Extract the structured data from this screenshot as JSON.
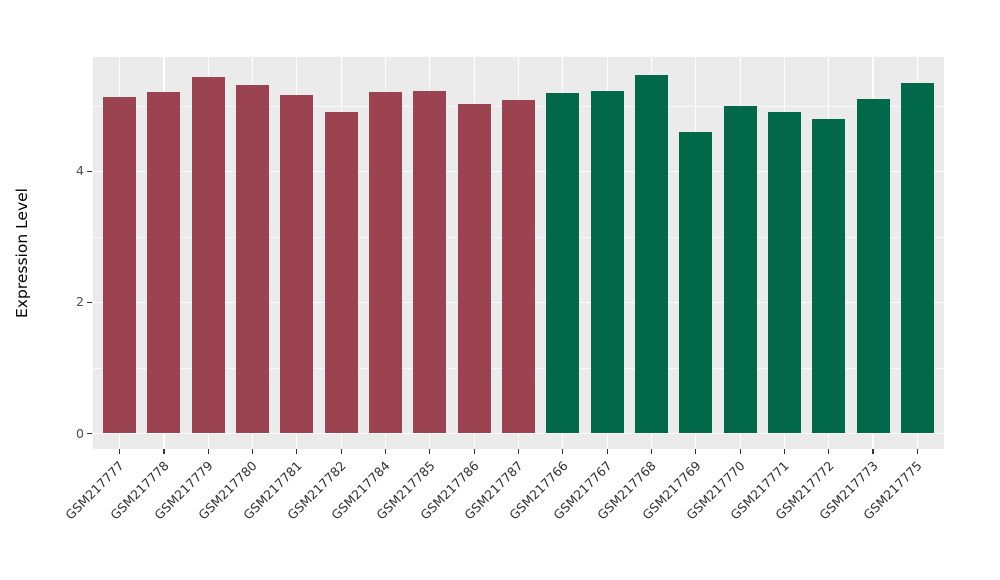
{
  "figure": {
    "background": "#FFFFFF",
    "panel_background": "#EBEBEB",
    "grid_color": "#FFFFFF",
    "tick_color": "#333333",
    "tick_label_color": "#4D4D4D"
  },
  "chart_data": {
    "type": "bar",
    "title": "",
    "xlabel": "",
    "ylabel": "Expression Level",
    "ylim": [
      -0.24,
      5.74
    ],
    "yticks": [
      {
        "value": 0,
        "label": "0"
      },
      {
        "value": 2,
        "label": "2"
      },
      {
        "value": 4,
        "label": "4"
      }
    ],
    "yminor": [
      1,
      3,
      5
    ],
    "grid": true,
    "legend_position": "none",
    "group_colors": {
      "red": "#9C4351",
      "green": "#02684A"
    },
    "categories": [
      "GSM217777",
      "GSM217778",
      "GSM217779",
      "GSM217780",
      "GSM217781",
      "GSM217782",
      "GSM217784",
      "GSM217785",
      "GSM217786",
      "GSM217787",
      "GSM217766",
      "GSM217767",
      "GSM217768",
      "GSM217769",
      "GSM217770",
      "GSM217771",
      "GSM217772",
      "GSM217773",
      "GSM217775"
    ],
    "values": [
      5.13,
      5.21,
      5.44,
      5.32,
      5.17,
      4.9,
      5.21,
      5.22,
      5.03,
      5.09,
      5.2,
      5.23,
      5.47,
      4.6,
      4.99,
      4.91,
      4.8,
      5.1,
      5.34
    ],
    "groups": [
      "red",
      "red",
      "red",
      "red",
      "red",
      "red",
      "red",
      "red",
      "red",
      "red",
      "green",
      "green",
      "green",
      "green",
      "green",
      "green",
      "green",
      "green",
      "green"
    ]
  }
}
